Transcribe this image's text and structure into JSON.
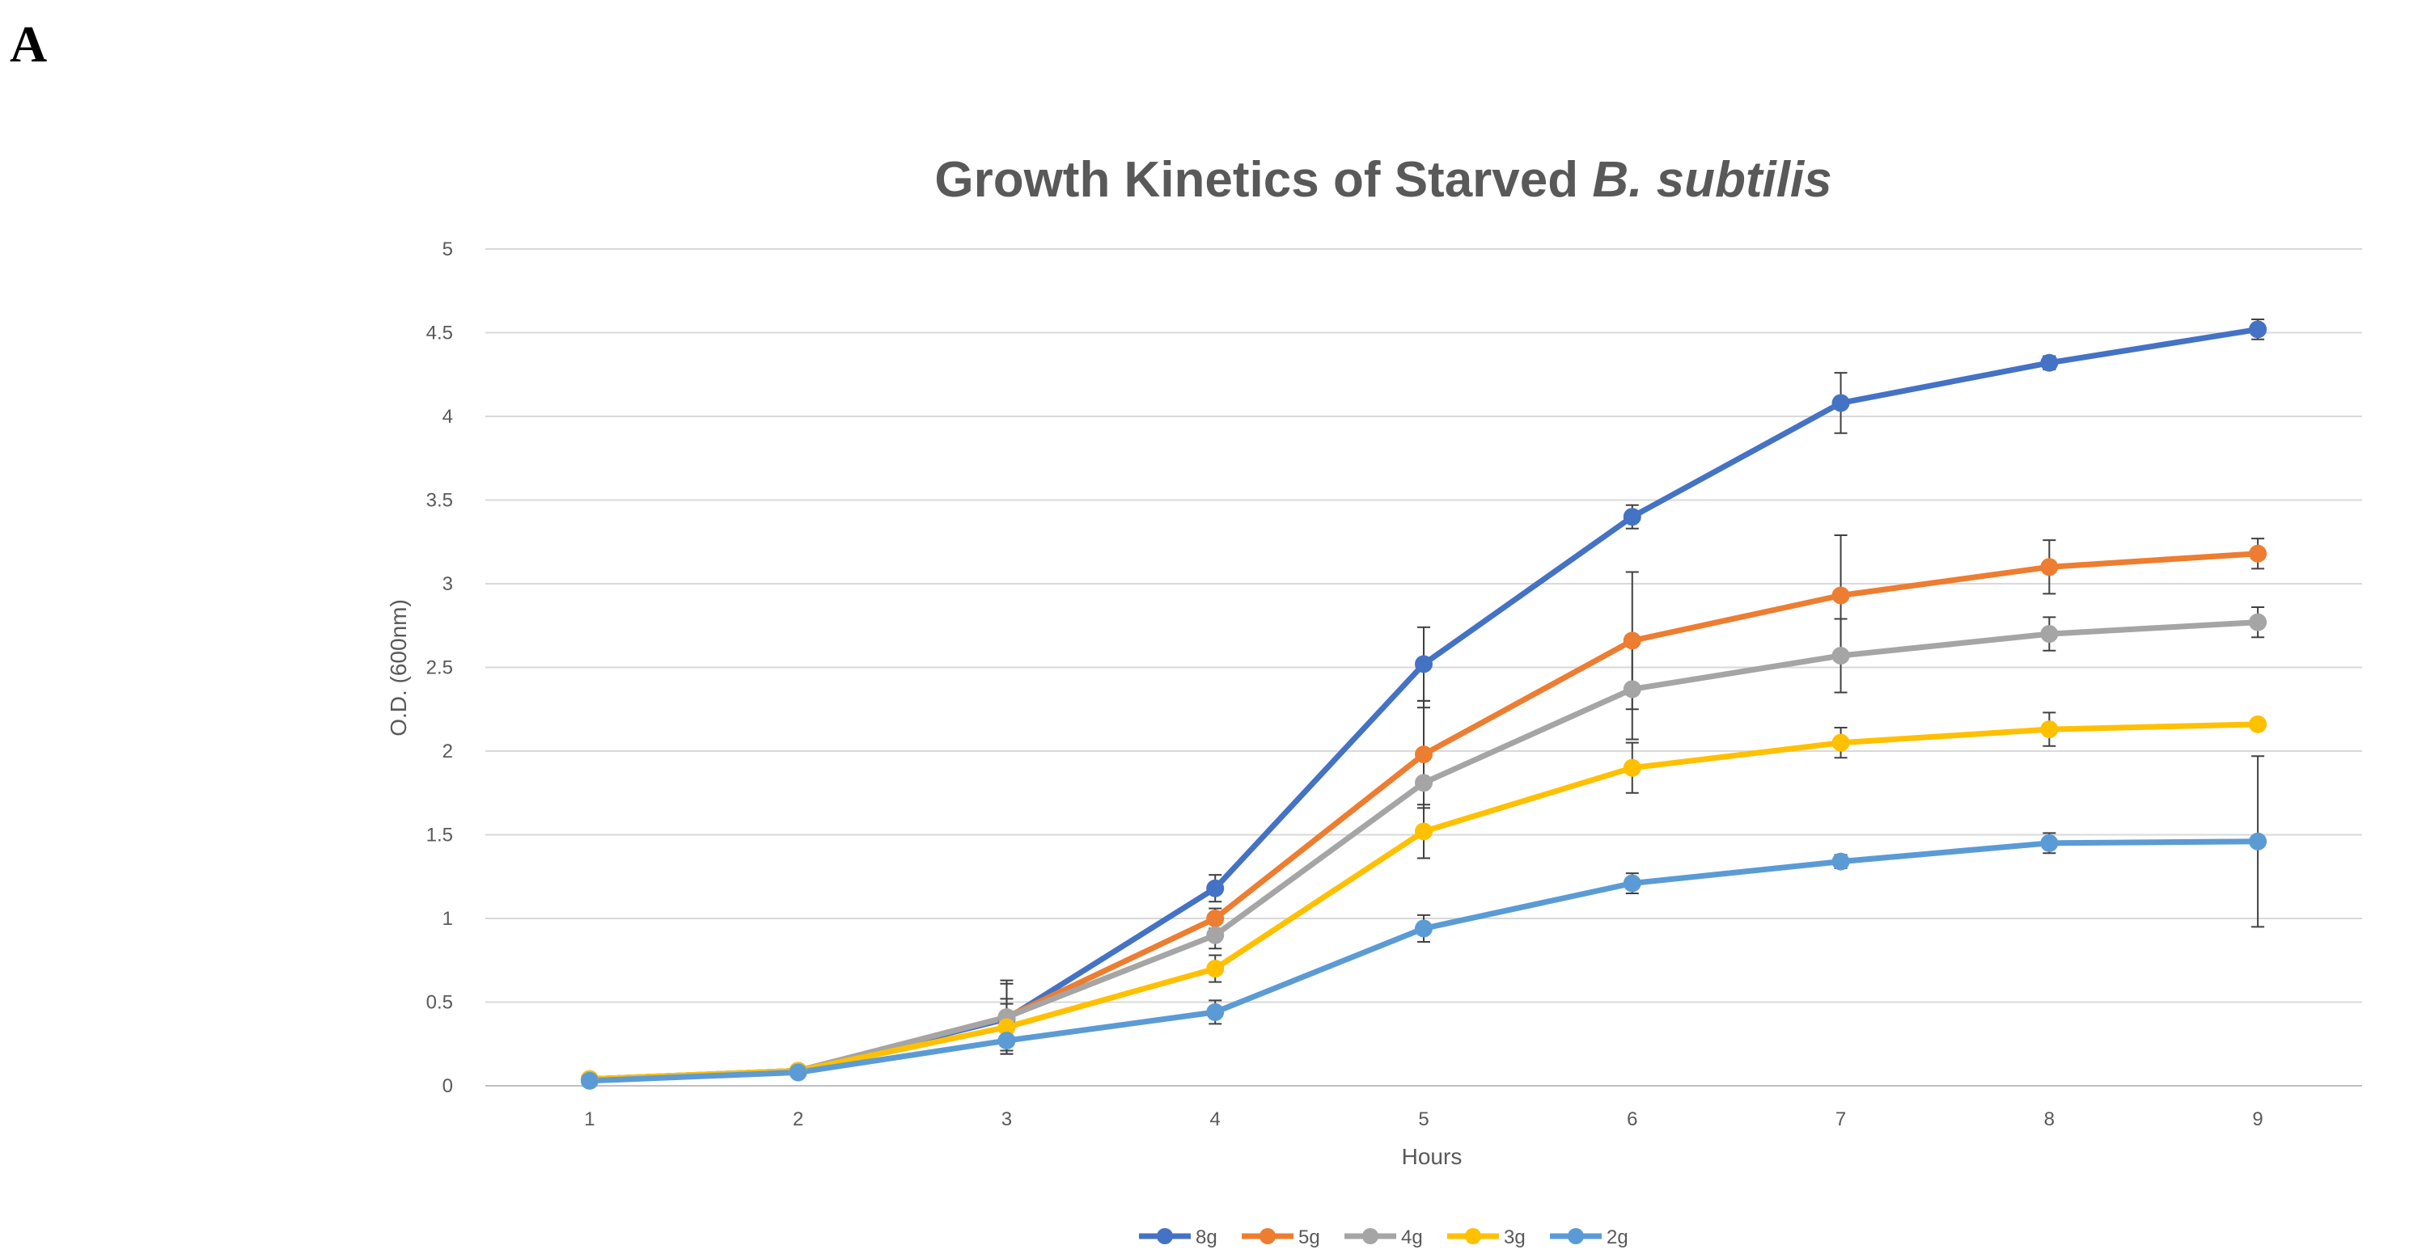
{
  "panel_label": "A",
  "chart_data": {
    "type": "line",
    "title": "Growth Kinetics of Starved",
    "title_italic": "B. subtilis",
    "xlabel": "Hours",
    "ylabel": "O.D. (600nm)",
    "x": [
      1,
      2,
      3,
      4,
      5,
      6,
      7,
      8,
      9
    ],
    "xlim": [
      0.5,
      9.5
    ],
    "ylim": [
      0,
      5
    ],
    "yticks": [
      0,
      0.5,
      1,
      1.5,
      2,
      2.5,
      3,
      3.5,
      4,
      4.5,
      5
    ],
    "ytick_labels": [
      "0",
      "0.5",
      "1",
      "1.5",
      "2",
      "2.5",
      "3",
      "3.5",
      "4",
      "4.5",
      "5"
    ],
    "xtick_labels": [
      "1",
      "2",
      "3",
      "4",
      "5",
      "6",
      "7",
      "8",
      "9"
    ],
    "grid": true,
    "legend_position": "bottom-center",
    "series": [
      {
        "name": "8g",
        "color": "#4472C4",
        "values": [
          0.04,
          0.09,
          0.4,
          1.18,
          2.52,
          3.4,
          4.08,
          4.32,
          4.52
        ],
        "errors": [
          0.01,
          0.02,
          0.12,
          0.08,
          0.22,
          0.07,
          0.18,
          0.04,
          0.06
        ]
      },
      {
        "name": "5g",
        "color": "#ED7D31",
        "values": [
          0.04,
          0.09,
          0.41,
          1.0,
          1.98,
          2.66,
          2.93,
          3.1,
          3.18
        ],
        "errors": [
          0.01,
          0.02,
          0.2,
          0.06,
          0.32,
          0.41,
          0.36,
          0.16,
          0.09
        ]
      },
      {
        "name": "4g",
        "color": "#A5A5A5",
        "values": [
          0.04,
          0.09,
          0.41,
          0.9,
          1.81,
          2.37,
          2.57,
          2.7,
          2.77
        ],
        "errors": [
          0.01,
          0.02,
          0.22,
          0.08,
          0.45,
          0.3,
          0.22,
          0.1,
          0.09
        ]
      },
      {
        "name": "3g",
        "color": "#FFC000",
        "values": [
          0.04,
          0.09,
          0.35,
          0.7,
          1.52,
          1.9,
          2.05,
          2.13,
          2.16
        ],
        "errors": [
          0.01,
          0.02,
          0.14,
          0.08,
          0.16,
          0.15,
          0.09,
          0.1,
          0.03
        ]
      },
      {
        "name": "2g",
        "color": "#5B9BD5",
        "values": [
          0.03,
          0.08,
          0.27,
          0.44,
          0.94,
          1.21,
          1.34,
          1.45,
          1.46
        ],
        "errors": [
          0.01,
          0.02,
          0.08,
          0.07,
          0.08,
          0.06,
          0.04,
          0.06,
          0.51
        ]
      }
    ]
  }
}
